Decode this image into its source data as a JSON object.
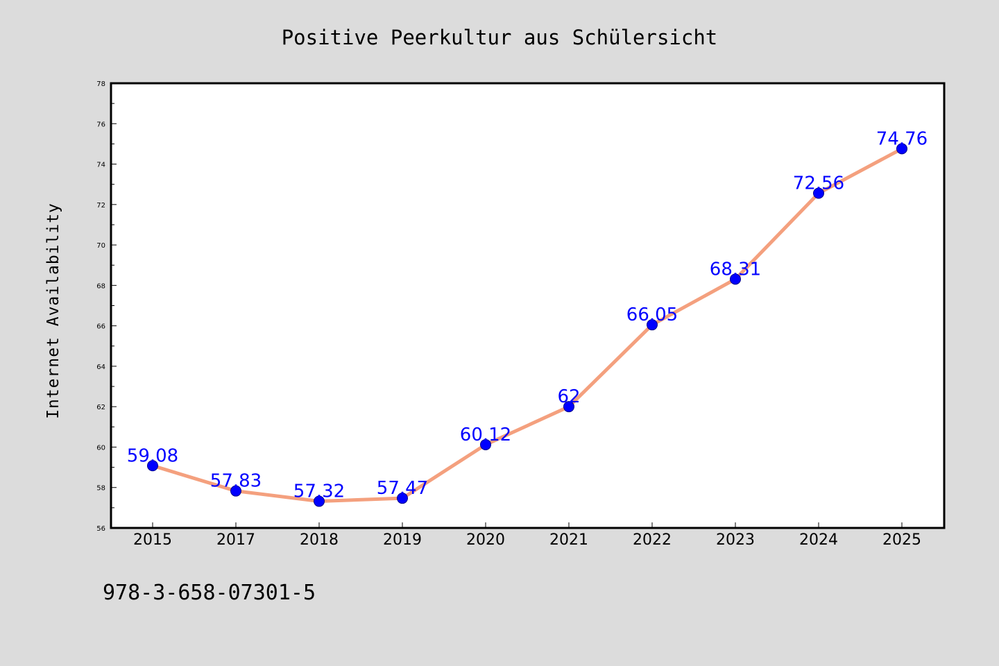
{
  "chart_data": {
    "type": "line",
    "title": "Positive Peerkultur aus Schülersicht",
    "xlabel": "",
    "ylabel": "Internet Availability",
    "categories": [
      "2015",
      "2017",
      "2018",
      "2019",
      "2020",
      "2021",
      "2022",
      "2023",
      "2024",
      "2025"
    ],
    "series": [
      {
        "values": [
          59.08,
          57.83,
          57.32,
          57.47,
          60.12,
          62,
          66.05,
          68.31,
          72.56,
          74.76
        ],
        "labels": [
          "59.08",
          "57.83",
          "57.32",
          "57.47",
          "60.12",
          "62",
          "66.05",
          "68.31",
          "72.56",
          "74.76"
        ],
        "line_color": "#f4a07e",
        "marker_color": "#0000ff"
      }
    ],
    "ylim": [
      56,
      78
    ],
    "yticks": [
      "56",
      "58",
      "60",
      "62",
      "64",
      "66",
      "68",
      "70",
      "72",
      "74",
      "76",
      "78"
    ],
    "grid": false,
    "legend": "none"
  },
  "footnote": "978-3-658-07301-5",
  "colors": {
    "background": "#dcdcdc",
    "plot_background": "#ffffff",
    "line": "#f4a07e",
    "marker": "#0000ff",
    "data_label": "#0000ff"
  }
}
